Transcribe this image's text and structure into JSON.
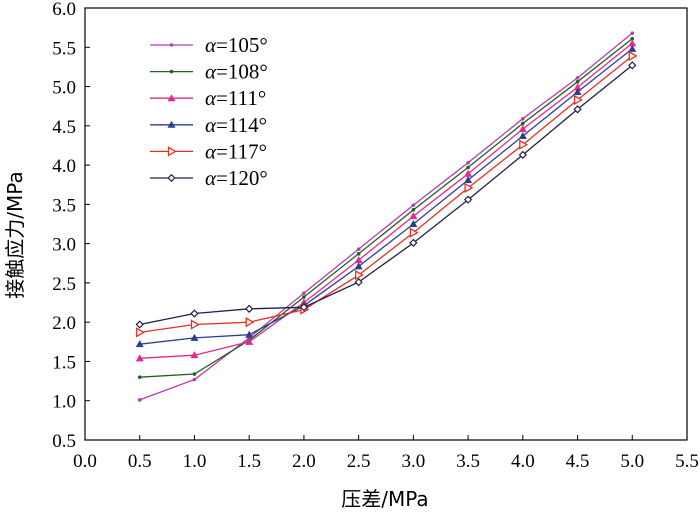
{
  "chart_data": {
    "type": "line",
    "title": "",
    "xlabel": "压差/MPa",
    "ylabel": "接触应力/MPa",
    "xlim": [
      0.0,
      5.5
    ],
    "ylim": [
      0.5,
      6.0
    ],
    "x_ticks": [
      "0.0",
      "0.5",
      "1.0",
      "1.5",
      "2.0",
      "2.5",
      "3.0",
      "3.5",
      "4.0",
      "4.5",
      "5.0",
      "5.5"
    ],
    "y_ticks": [
      "0.5",
      "1.0",
      "1.5",
      "2.0",
      "2.5",
      "3.0",
      "3.5",
      "4.0",
      "4.5",
      "5.0",
      "5.5",
      "6.0"
    ],
    "grid": false,
    "legend_position": "top-left",
    "x": [
      0.5,
      1.0,
      1.5,
      2.0,
      2.5,
      3.0,
      3.5,
      4.0,
      4.5,
      5.0
    ],
    "series": [
      {
        "name": "α=105°",
        "symbol": "α",
        "eq": "=105°",
        "color": "#b040b0",
        "marker": "dot",
        "values": [
          1.01,
          1.27,
          1.8,
          2.37,
          2.93,
          3.49,
          4.03,
          4.59,
          5.11,
          5.68
        ]
      },
      {
        "name": "α=108°",
        "symbol": "α",
        "eq": "=108°",
        "color": "#206020",
        "marker": "dot",
        "values": [
          1.3,
          1.34,
          1.77,
          2.32,
          2.87,
          3.43,
          3.97,
          4.53,
          5.06,
          5.61
        ]
      },
      {
        "name": "α=111°",
        "symbol": "α",
        "eq": "=111°",
        "color": "#e8288a",
        "marker": "triangle-up",
        "values": [
          1.54,
          1.58,
          1.75,
          2.25,
          2.79,
          3.35,
          3.89,
          4.46,
          4.99,
          5.55
        ]
      },
      {
        "name": "α=114°",
        "symbol": "α",
        "eq": "=114°",
        "color": "#2a3f8f",
        "marker": "triangle-up",
        "values": [
          1.72,
          1.8,
          1.84,
          2.21,
          2.71,
          3.25,
          3.81,
          4.37,
          4.93,
          5.48
        ]
      },
      {
        "name": "α=117°",
        "symbol": "α",
        "eq": "=117°",
        "color": "#e83020",
        "marker": "triangle-right",
        "values": [
          1.87,
          1.97,
          2.0,
          2.16,
          2.6,
          3.14,
          3.71,
          4.26,
          4.83,
          5.39
        ]
      },
      {
        "name": "α=120°",
        "symbol": "α",
        "eq": "=120°",
        "color": "#202048",
        "marker": "diamond",
        "values": [
          1.97,
          2.11,
          2.17,
          2.19,
          2.51,
          3.01,
          3.56,
          4.13,
          4.71,
          5.27
        ]
      }
    ]
  }
}
